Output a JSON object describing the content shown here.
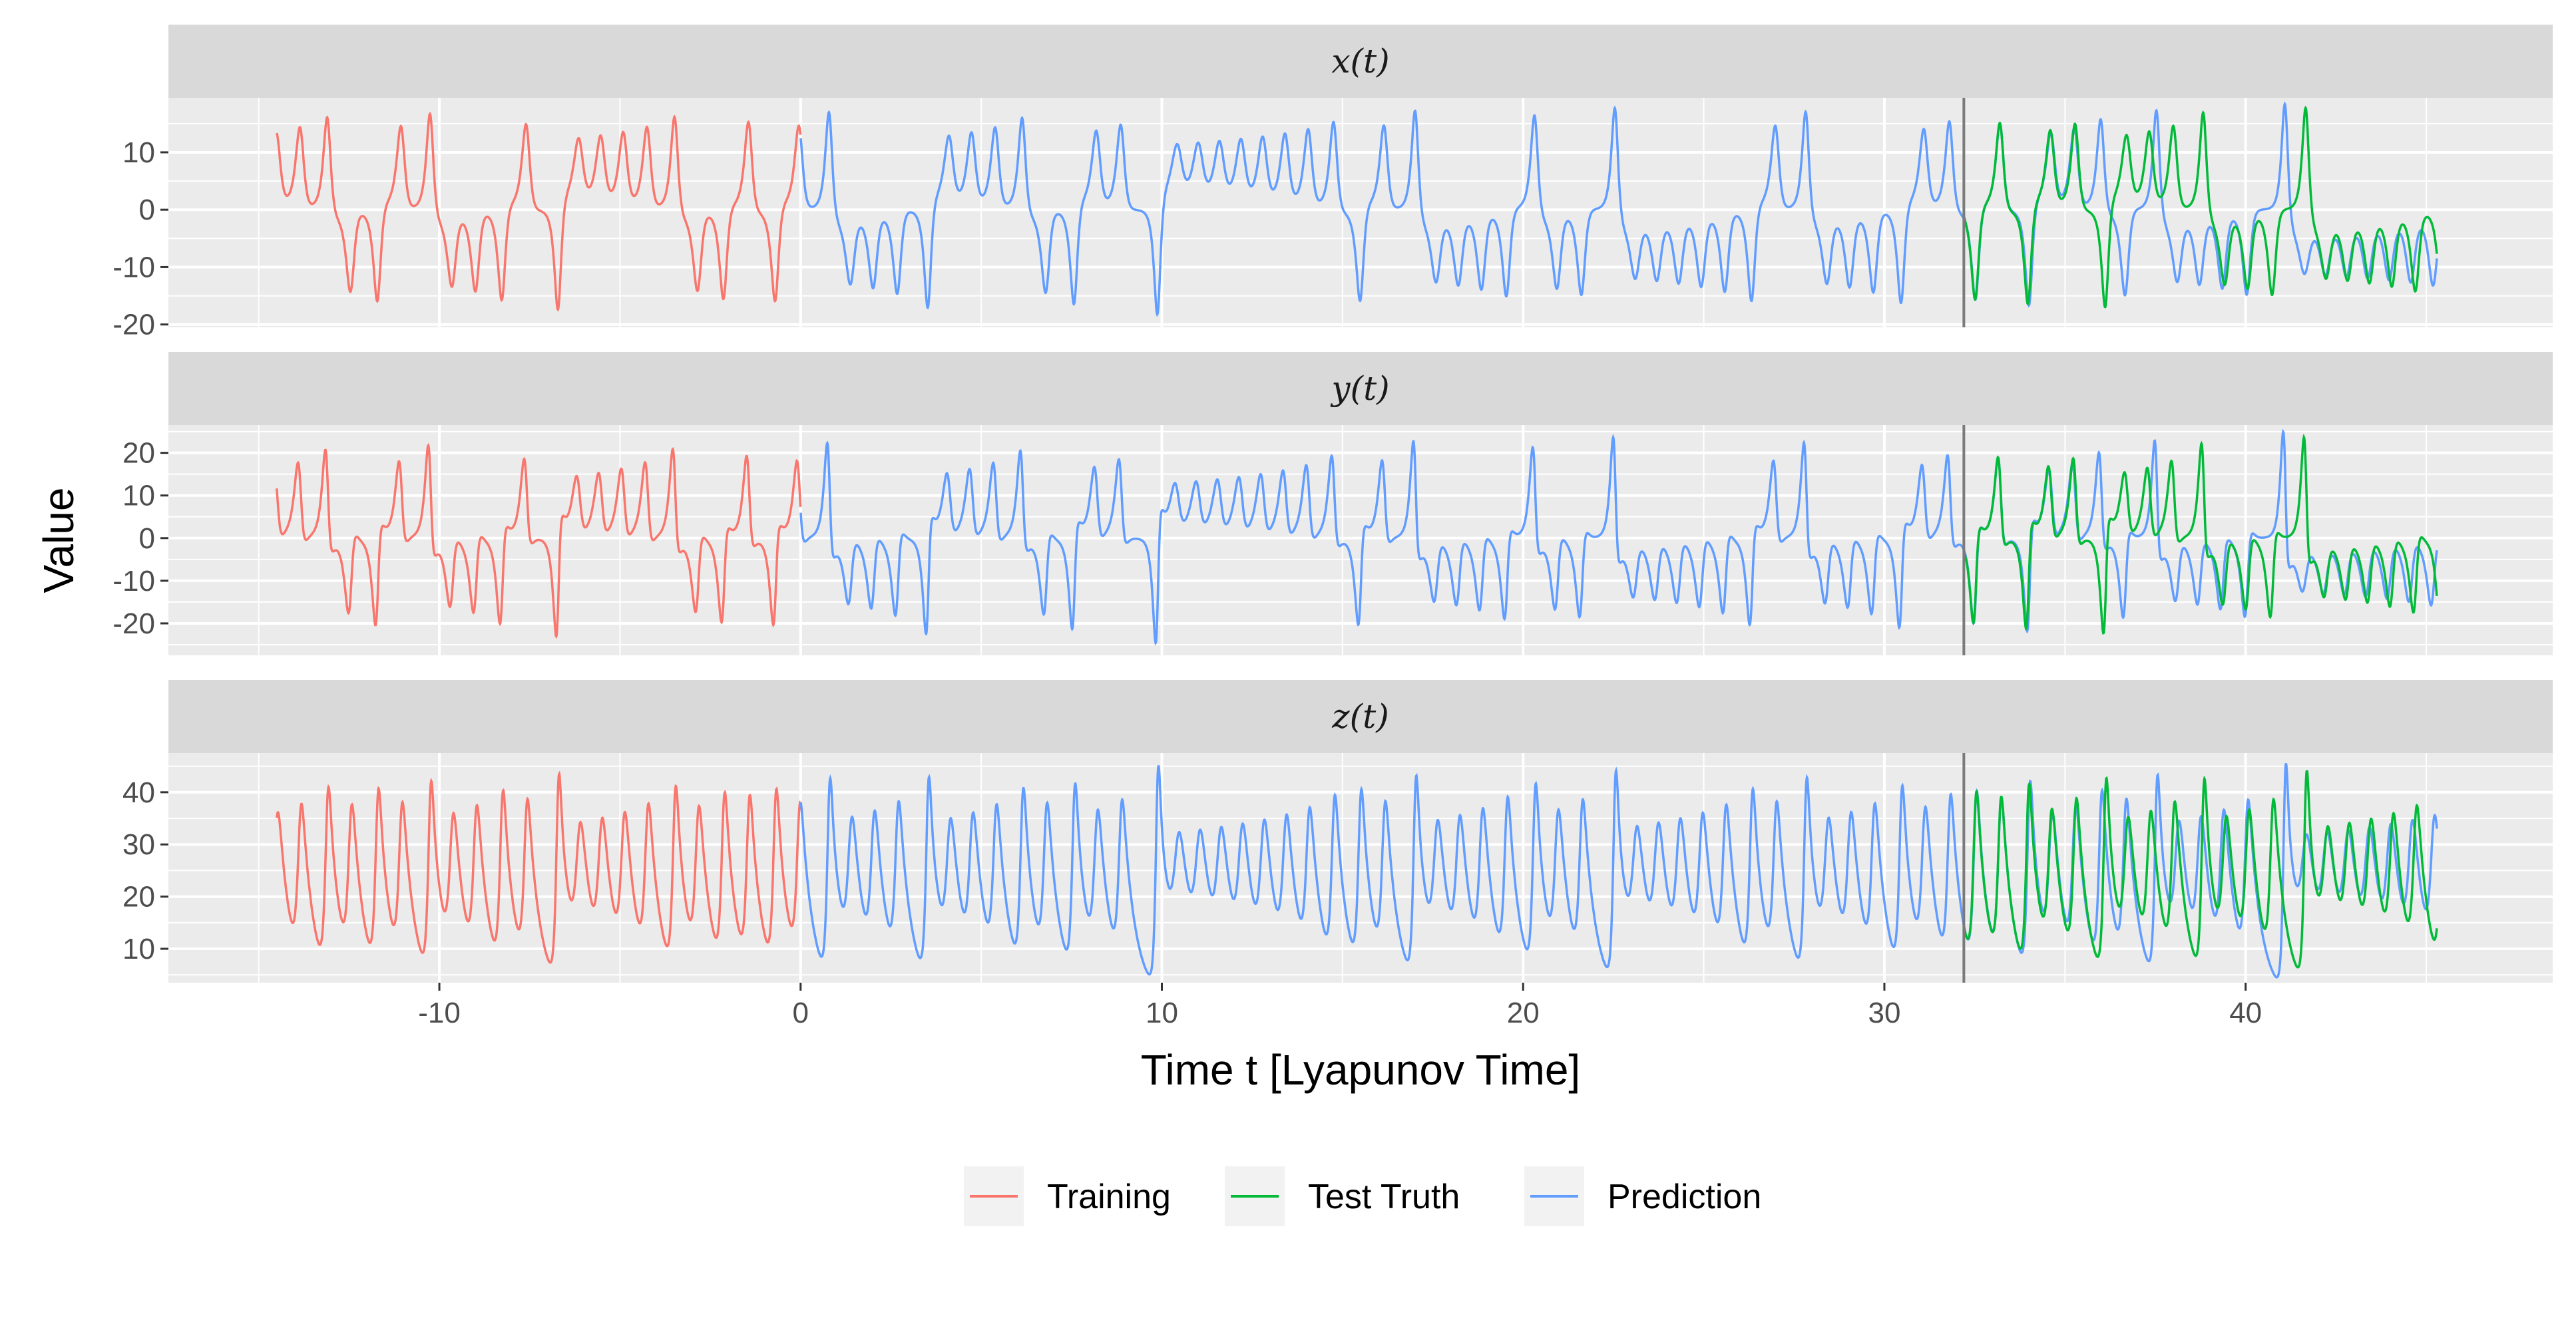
{
  "chart_data": {
    "type": "line",
    "facets": [
      {
        "label": "x(t)",
        "yticks": [
          -20,
          -10,
          0,
          10
        ],
        "ylim": [
          -20.5,
          19.5
        ]
      },
      {
        "label": "y(t)",
        "yticks": [
          -20,
          10,
          0,
          -10,
          20
        ],
        "ytick_labels": [
          "-20",
          "10",
          "0",
          "-10",
          "20"
        ],
        "ylim": [
          -27.5,
          26.5
        ]
      },
      {
        "label": "z(t)",
        "yticks": [
          10,
          20,
          30,
          40
        ],
        "ylim": [
          3.5,
          47.5
        ]
      }
    ],
    "facet_ticks": [
      [
        "-20",
        "-10",
        "0",
        "10"
      ],
      [
        "-20",
        "-10",
        "0",
        "10",
        "20"
      ],
      [
        "10",
        "20",
        "30",
        "40"
      ]
    ],
    "xlabel": "Time t [Lyapunov Time]",
    "ylabel": "Value",
    "xlim": [
      -17.5,
      48.5
    ],
    "xticks": [
      -10,
      0,
      10,
      20,
      30,
      40
    ],
    "vline_x": 32.2,
    "grid": true,
    "legend_position": "bottom",
    "series": [
      {
        "name": "Training",
        "color": "#F8766D",
        "t_range": [
          -14.5,
          0
        ]
      },
      {
        "name": "Test Truth",
        "color": "#00BA38",
        "t_range": [
          32.2,
          45.3
        ]
      },
      {
        "name": "Prediction",
        "color": "#619CFF",
        "t_range": [
          0,
          45.3
        ]
      }
    ]
  }
}
